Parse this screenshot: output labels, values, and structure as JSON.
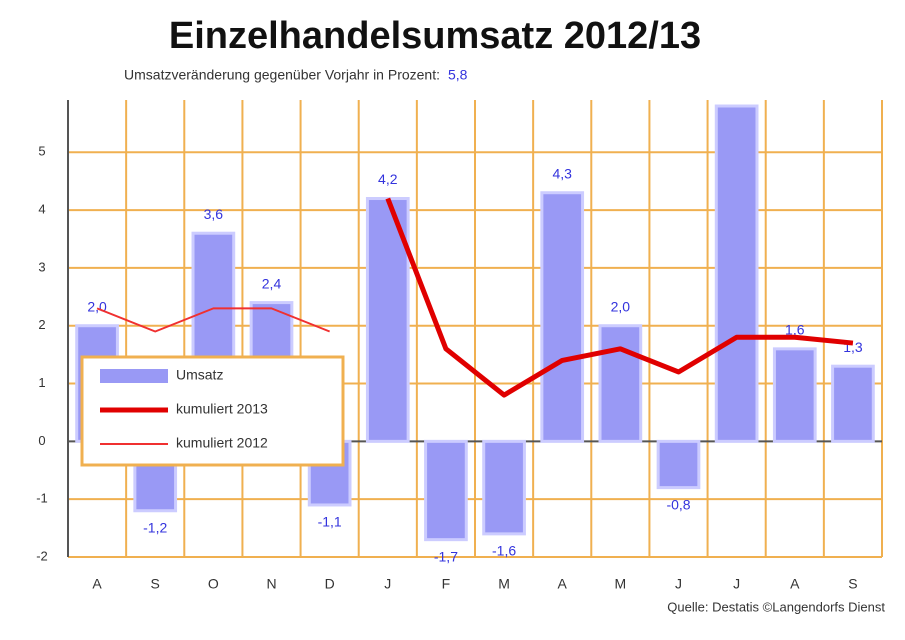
{
  "chart_data": {
    "type": "bar",
    "title": "Einzelhandelsumsatz 2012/13",
    "subtitle": "Umsatzveränderung gegenüber Vorjahr in Prozent:",
    "subtitle_value": "5,8",
    "source": "Quelle: Destatis ©Langendorfs Dienst",
    "categories": [
      "A",
      "S",
      "O",
      "N",
      "D",
      "J",
      "F",
      "M",
      "A",
      "M",
      "J",
      "J",
      "A",
      "S"
    ],
    "series": [
      {
        "name": "Umsatz",
        "type": "bar",
        "color": "#9999f5",
        "values": [
          2.0,
          -1.2,
          3.6,
          2.4,
          -1.1,
          4.2,
          -1.7,
          -1.6,
          4.3,
          2.0,
          -0.8,
          5.8,
          1.6,
          1.3
        ],
        "value_labels": [
          "2,0",
          "-1,2",
          "3,6",
          "2,4",
          "-1,1",
          "4,2",
          "-1,7",
          "-1,6",
          "4,3",
          "2,0",
          "-0,8",
          null,
          "1,6",
          "1,3"
        ]
      },
      {
        "name": "kumuliert 2013",
        "type": "line",
        "color": "#e00000",
        "values": [
          null,
          null,
          null,
          null,
          null,
          4.2,
          1.6,
          0.8,
          1.4,
          1.6,
          1.2,
          1.8,
          1.8,
          1.7
        ]
      },
      {
        "name": "kumuliert 2012",
        "type": "line",
        "color": "#f03030",
        "values": [
          2.3,
          1.9,
          2.3,
          2.3,
          1.9,
          null,
          null,
          null,
          null,
          null,
          null,
          null,
          null,
          null
        ]
      }
    ],
    "ylim": [
      -2,
      5.8
    ],
    "yticks": [
      -2,
      -1,
      0,
      1,
      2,
      3,
      4,
      5
    ],
    "grid": true
  }
}
